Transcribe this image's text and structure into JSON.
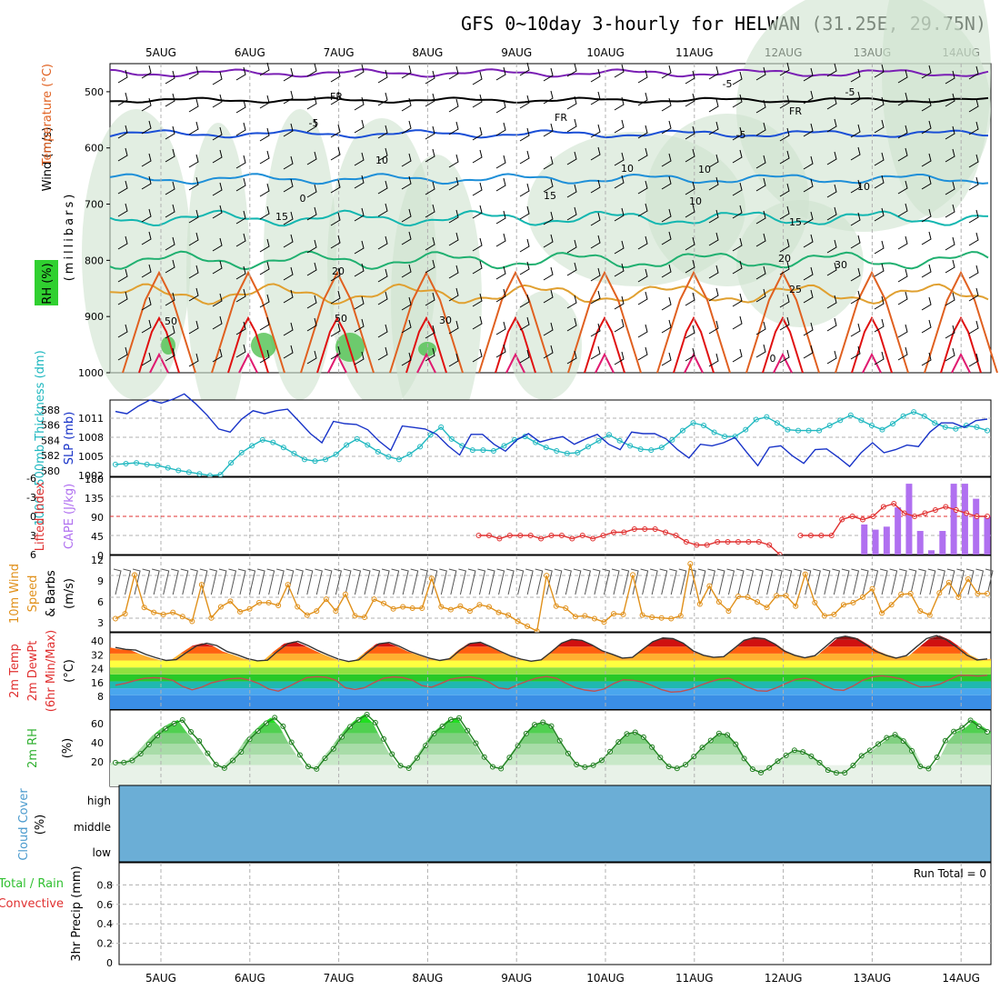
{
  "title": "GFS 0~10day 3-hourly for HELWAN (31.25E, 29.75N)",
  "days": [
    "5AUG",
    "6AUG",
    "7AUG",
    "8AUG",
    "9AUG",
    "10AUG",
    "11AUG",
    "12AUG",
    "13AUG",
    "14AUG"
  ],
  "colors": {
    "purple": "#7a1fb4",
    "black": "#000000",
    "blue": "#1a4fd6",
    "azure": "#1e8fd8",
    "teal": "#12b6b0",
    "green": "#20b070",
    "orange": "#e0a030",
    "darkorange": "#e06020",
    "red": "#e01010",
    "magenta": "#e01a70",
    "slp": "#1833c8",
    "thick": "#20b8c0",
    "li": "#e03030",
    "cape": "#b070f0",
    "wind": "#e0901a",
    "rh": "#30d030",
    "cloud": "#6baed6",
    "grid": "#b0b0b0"
  },
  "panels": {
    "upper": {
      "label_wind": "Wind (m/s)",
      "label_temp": "Temperature (°C)",
      "label_rh": "RH (%)",
      "label_mb": "(millibars)",
      "ticks": [
        "500",
        "600",
        "700",
        "800",
        "900",
        "1000"
      ],
      "contour_labels": [
        "-5",
        "FR",
        "FR",
        "FR",
        "-5",
        "-5",
        "-5",
        "10",
        "10",
        "10",
        "15",
        "15",
        "15",
        "20",
        "20",
        "25",
        "0",
        "0",
        "50",
        "50",
        "30",
        "30",
        "10",
        "10"
      ]
    },
    "pressure": {
      "label_thick": "1000~500mb Thickness (dm)",
      "label_slp": "SLP (mb)",
      "left_ticks": [
        "588",
        "586",
        "584",
        "582",
        "580"
      ],
      "right_ticks": [
        "1011",
        "1008",
        "1005",
        "1002"
      ]
    },
    "instability": {
      "label_li": "Lifted Index",
      "label_cape": "CAPE (J/kg)",
      "left_ticks": [
        "-6",
        "-3",
        "0",
        "3",
        "6"
      ],
      "right_ticks": [
        "180",
        "135",
        "90",
        "45",
        "0"
      ]
    },
    "wind10m": {
      "label_a": "10m Wind",
      "label_b": "Speed",
      "label_c": "& Barbs",
      "label_unit": "(m/s)",
      "ticks": [
        "12",
        "9",
        "6",
        "3"
      ]
    },
    "temp2m": {
      "label_a": "2m Temp",
      "label_b": "2m DewPt",
      "label_c": "(6hr Min/Max)",
      "label_unit": "(°C)",
      "ticks": [
        "40",
        "32",
        "24",
        "16",
        "8"
      ]
    },
    "rh2m": {
      "label_a": "2m RH",
      "label_unit": "(%)",
      "ticks": [
        "60",
        "40",
        "20"
      ]
    },
    "cloud": {
      "label_a": "Cloud Cover",
      "label_unit": "(%)",
      "rows": [
        "high",
        "middle",
        "low"
      ]
    },
    "precip": {
      "label_a": "Total / Rain",
      "label_b": "Convective",
      "label_c": "3hr Precip (mm)",
      "run_total": "Run Total = 0",
      "ticks": [
        "0.8",
        "0.6",
        "0.4",
        "0.2",
        "0"
      ]
    }
  },
  "chart_data": [
    {
      "type": "line",
      "title": "1000~500mb Thickness (dm) and SLP (mb)",
      "x_unit": "3-hourly steps from 4AUG 15Z",
      "series": [
        {
          "name": "SLP (mb)",
          "axis": "right",
          "ylim": [
            1002,
            1012
          ],
          "values": [
            1010.5,
            1010.2,
            1011.2,
            1012.0,
            1011.6,
            1012.1,
            1012.8,
            1011.5,
            1010.0,
            1008.2,
            1007.8,
            1009.5,
            1010.6,
            1010.2,
            1010.6,
            1010.8,
            1009.2,
            1007.6,
            1006.4,
            1009.2,
            1008.9,
            1008.8,
            1008.1,
            1006.6,
            1005.4,
            1008.6,
            1008.4,
            1008.2,
            1007.5,
            1006.0,
            1004.8,
            1007.5,
            1007.5,
            1006.2,
            1005.3,
            1006.8,
            1007.6,
            1006.5,
            1006.9,
            1007.2,
            1006.2,
            1006.9,
            1007.5,
            1006.2,
            1005.5,
            1007.8,
            1007.6,
            1007.6,
            1006.9,
            1005.5,
            1004.4,
            1006.2,
            1006.0,
            1006.4,
            1007.1,
            1005.2,
            1003.4,
            1005.8,
            1006.0,
            1004.7,
            1003.7,
            1005.5,
            1005.6,
            1004.5,
            1003.3,
            1005.1,
            1006.4,
            1005.1,
            1005.5,
            1006.1,
            1005.9,
            1007.8,
            1009.0,
            1009.0,
            1008.4,
            1009.3,
            1009.5
          ]
        },
        {
          "name": "1000~500mb Thickness (dm)",
          "axis": "left",
          "ylim": [
            580,
            589
          ],
          "values": [
            581.4,
            581.5,
            581.6,
            581.4,
            581.3,
            581.0,
            580.7,
            580.5,
            580.3,
            580.1,
            580.2,
            581.6,
            582.8,
            583.6,
            584.3,
            584.0,
            583.4,
            582.7,
            582.0,
            581.8,
            582.0,
            582.6,
            583.7,
            584.4,
            583.7,
            582.9,
            582.3,
            582.0,
            582.6,
            583.5,
            584.9,
            585.8,
            584.4,
            583.6,
            583.1,
            583.1,
            583.0,
            583.6,
            584.3,
            584.7,
            584.0,
            583.4,
            583.0,
            582.7,
            582.8,
            583.5,
            584.2,
            584.9,
            584.2,
            583.6,
            583.2,
            583.1,
            583.4,
            584.3,
            585.4,
            586.3,
            586.0,
            585.2,
            584.7,
            584.7,
            585.5,
            586.7,
            587.0,
            586.3,
            585.5,
            585.4,
            585.4,
            585.4,
            586.0,
            586.6,
            587.2,
            586.6,
            586.0,
            585.5,
            586.2,
            587.1,
            587.6,
            587.1,
            586.3,
            585.8,
            585.6,
            586.0,
            585.8,
            585.4
          ]
        }
      ],
      "xlabel": "",
      "ylabel": "SLP (mb)"
    },
    {
      "type": "bar",
      "title": "CAPE (J/kg) and Lifted Index",
      "series": [
        {
          "name": "CAPE (J/kg)",
          "axis": "right",
          "ylim": [
            0,
            180
          ],
          "values": [
            0,
            0,
            0,
            0,
            0,
            0,
            0,
            0,
            0,
            0,
            0,
            0,
            0,
            0,
            0,
            0,
            0,
            0,
            0,
            0,
            0,
            0,
            0,
            0,
            0,
            0,
            0,
            0,
            0,
            0,
            0,
            0,
            0,
            0,
            0,
            0,
            0,
            0,
            0,
            0,
            0,
            0,
            0,
            0,
            0,
            0,
            0,
            0,
            0,
            0,
            0,
            0,
            0,
            0,
            0,
            0,
            0,
            0,
            0,
            0,
            0,
            0,
            0,
            0,
            0,
            0,
            0,
            70,
            58,
            65,
            110,
            165,
            55,
            10,
            55,
            165,
            165,
            130,
            90
          ]
        },
        {
          "name": "Lifted Index",
          "axis": "left",
          "ylim": [
            6,
            -6
          ],
          "values": [
            null,
            null,
            null,
            null,
            null,
            null,
            null,
            null,
            null,
            null,
            null,
            null,
            null,
            null,
            null,
            null,
            null,
            null,
            null,
            null,
            null,
            null,
            null,
            null,
            null,
            null,
            null,
            null,
            null,
            null,
            null,
            null,
            null,
            null,
            null,
            3,
            3,
            3.5,
            3,
            3,
            3,
            3.5,
            3,
            3,
            3.5,
            3,
            3.5,
            3,
            2.5,
            2.5,
            2,
            2,
            2,
            2.5,
            3,
            4,
            4.5,
            4.5,
            4,
            4,
            4,
            4,
            4,
            4.5,
            6,
            null,
            3,
            3,
            3,
            3,
            0.5,
            0,
            0.5,
            0,
            -1.5,
            -2,
            -0.5,
            0,
            -0.5,
            -1,
            -1.5,
            -1,
            -0.5,
            0,
            0
          ]
        }
      ],
      "xlabel": "",
      "ylabel": "CAPE (J/kg)"
    },
    {
      "type": "line",
      "title": "10m Wind Speed (m/s)",
      "series": [
        {
          "name": "Speed",
          "ylim": [
            1,
            12
          ],
          "values": [
            2.9,
            3.6,
            9.2,
            4.5,
            3.8,
            3.5,
            3.8,
            3.2,
            2.5,
            7.8,
            3.0,
            4.6,
            5.4,
            3.9,
            4.3,
            5.2,
            5.2,
            4.8,
            7.8,
            4.6,
            3.4,
            4.0,
            5.7,
            4.0,
            6.4,
            3.3,
            3.1,
            5.7,
            5.1,
            4.3,
            4.6,
            4.4,
            4.4,
            8.7,
            4.6,
            4.2,
            4.7,
            4.0,
            4.9,
            4.6,
            3.8,
            3.4,
            2.5,
            1.8,
            1.1,
            9.1,
            4.7,
            4.4,
            3.2,
            3.3,
            2.9,
            2.4,
            3.6,
            3.5,
            9.2,
            3.4,
            3.1,
            3.0,
            2.9,
            3.3,
            10.8,
            5.0,
            7.6,
            5.3,
            4.0,
            6.1,
            6.0,
            5.3,
            4.5,
            6.2,
            6.2,
            4.7,
            9.3,
            5.2,
            3.3,
            3.5,
            4.9,
            5.2,
            6.0,
            7.2,
            3.7,
            4.9,
            6.4,
            6.5,
            4.0,
            3.4,
            6.6,
            8.1,
            6.0,
            8.6,
            6.5,
            6.5
          ]
        }
      ],
      "xlabel": "",
      "ylabel": "(m/s)"
    },
    {
      "type": "area",
      "title": "2m Temp and 2m DewPt (°C)",
      "series": [
        {
          "name": "2m Temp",
          "ylim": [
            0,
            44
          ],
          "values": [
            35.5,
            34.4,
            34.0,
            31.5,
            29.6,
            28.0,
            28.5,
            32.6,
            36.4,
            37.9,
            36.6,
            33.2,
            31.3,
            29.1,
            27.8,
            28.2,
            33.3,
            37.7,
            39.0,
            36.6,
            33.7,
            31.1,
            28.8,
            27.4,
            28.4,
            33.2,
            37.6,
            38.4,
            36.2,
            33.3,
            31.2,
            29.3,
            28.0,
            29.0,
            34.0,
            37.8,
            38.5,
            36.0,
            33.2,
            30.6,
            28.8,
            27.6,
            28.4,
            33.0,
            38.0,
            40.2,
            39.6,
            37.0,
            33.6,
            31.6,
            29.4,
            29.8,
            34.4,
            38.8,
            41.0,
            40.6,
            38.0,
            33.5,
            31.0,
            29.8,
            30.2,
            34.8,
            39.6,
            41.2,
            40.6,
            37.6,
            33.4,
            31.0,
            29.6,
            30.8,
            35.8,
            40.8,
            42.0,
            40.8,
            37.2,
            33.3,
            31.0,
            29.4,
            30.8,
            35.8,
            40.6,
            42.4,
            39.8,
            35.6,
            31.0,
            28.3,
            28.9
          ]
        },
        {
          "name": "2m DewPt",
          "ylim": [
            0,
            44
          ],
          "values": [
            13.8,
            14.8,
            16.4,
            17.7,
            18.1,
            17.8,
            16.5,
            13.1,
            11.1,
            12.6,
            15.1,
            16.4,
            17.5,
            17.8,
            16.7,
            14.6,
            11.6,
            10.3,
            12.8,
            15.6,
            18.2,
            18.7,
            18.4,
            16.6,
            12.3,
            11.3,
            12.3,
            15.3,
            17.8,
            18.6,
            18.2,
            16.6,
            13.5,
            12.6,
            14.8,
            17.2,
            18.2,
            18.6,
            17.6,
            15.5,
            12.2,
            11.6,
            14.1,
            16.2,
            17.9,
            18.8,
            17.8,
            15.0,
            12.4,
            11.0,
            10.3,
            11.6,
            14.7,
            16.9,
            16.6,
            15.6,
            13.6,
            11.2,
            9.8,
            10.1,
            11.4,
            13.6,
            15.6,
            17.2,
            17.8,
            15.4,
            12.6,
            10.6,
            10.3,
            12.3,
            14.8,
            17.1,
            17.8,
            16.4,
            13.5,
            11.2,
            10.8,
            13.3,
            16.6,
            18.5,
            19.2,
            18.5,
            17.4,
            15.0,
            12.8,
            13.0,
            14.3,
            16.8,
            19.4,
            19.5,
            19.0,
            19.5
          ]
        }
      ],
      "xlabel": "",
      "ylabel": "(°C)"
    },
    {
      "type": "area",
      "title": "2m RH (%)",
      "series": [
        {
          "name": "2m RH",
          "ylim": [
            0,
            72
          ],
          "values": [
            22.4,
            22.5,
            24.4,
            30.8,
            39.4,
            47.9,
            54.4,
            59.2,
            62.6,
            51.4,
            42.8,
            31.2,
            20.5,
            17.2,
            24.4,
            32.5,
            44.4,
            52.1,
            59.6,
            64.8,
            56.7,
            41.6,
            29.6,
            18.6,
            16.4,
            26.5,
            35.4,
            46.6,
            56.2,
            62.8,
            67.7,
            60.1,
            44.7,
            30.4,
            19.5,
            17.1,
            26.8,
            38.5,
            49.8,
            56.6,
            63.0,
            64.5,
            52.6,
            40.7,
            27.6,
            18.4,
            16.7,
            27.2,
            38.2,
            49.8,
            58.2,
            60.4,
            56.9,
            43.2,
            31.1,
            20.6,
            18.1,
            19.9,
            24.5,
            32.8,
            41.9,
            49.5,
            51.0,
            46.4,
            37.1,
            27.2,
            18.8,
            16.9,
            20.5,
            28.2,
            36.6,
            43.3,
            49.9,
            48.5,
            39.8,
            26.2,
            16.2,
            13.0,
            17.5,
            23.8,
            29.3,
            34.1,
            32.5,
            28.4,
            22.4,
            15.3,
            12.8,
            12.8,
            19.7,
            28.8,
            34.0,
            40.0,
            45.9,
            48.7,
            42.8,
            33.5,
            18.7,
            16.7,
            27.4,
            43.1,
            51.8,
            55.3,
            62.3,
            56.6,
            51.4
          ]
        }
      ],
      "xlabel": "",
      "ylabel": "(%)"
    },
    {
      "type": "bar",
      "title": "3hr Precip (mm)",
      "categories": [
        "5AUG",
        "6AUG",
        "7AUG",
        "8AUG",
        "9AUG",
        "10AUG",
        "11AUG",
        "12AUG",
        "13AUG",
        "14AUG"
      ],
      "values": [
        0,
        0,
        0,
        0,
        0,
        0,
        0,
        0,
        0,
        0
      ],
      "ylim": [
        0,
        1
      ],
      "xlabel": "",
      "ylabel": "3hr Precip (mm)"
    }
  ]
}
